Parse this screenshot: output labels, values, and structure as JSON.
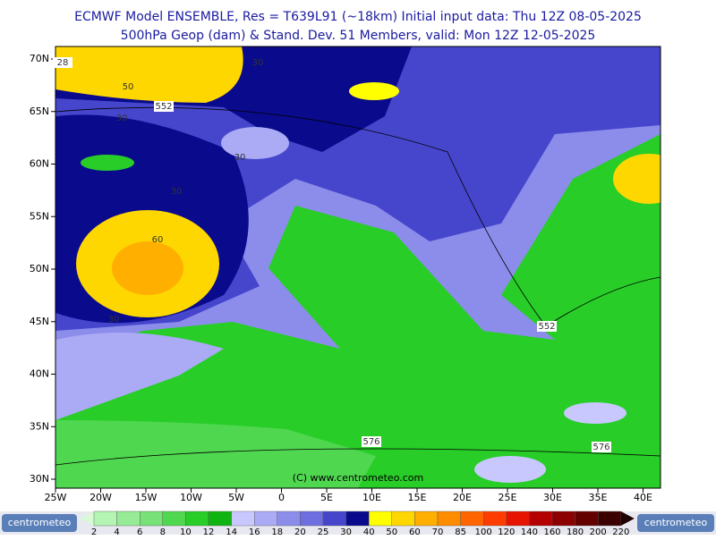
{
  "header": {
    "line1": "ECMWF Model ENSEMBLE, Res = T639L91 (~18km)  Initial input data: Thu 12Z 08-05-2025",
    "line2": "500hPa Geop (dam) & Stand. Dev.   51 Members, valid: Mon 12Z 12-05-2025"
  },
  "map": {
    "lat_labels": [
      "70N",
      "65N",
      "60N",
      "55N",
      "50N",
      "45N",
      "40N",
      "35N",
      "30N"
    ],
    "lon_labels": [
      "25W",
      "20W",
      "15W",
      "10W",
      "5W",
      "0",
      "5E",
      "10E",
      "15E",
      "20E",
      "25E",
      "30E",
      "35E",
      "40E"
    ],
    "contour_labels": [
      "28",
      "552",
      "552",
      "576",
      "576",
      "30",
      "30",
      "30",
      "30",
      "30",
      "50",
      "60"
    ],
    "watermark": "(C) www.centrometeo.com"
  },
  "legend": {
    "labels": [
      "2",
      "4",
      "6",
      "8",
      "10",
      "12",
      "14",
      "16",
      "18",
      "20",
      "25",
      "30",
      "40",
      "50",
      "60",
      "70",
      "85",
      "100",
      "120",
      "140",
      "160",
      "180",
      "200",
      "220"
    ],
    "colors": [
      "#b4f5b4",
      "#96eb96",
      "#78e178",
      "#50d750",
      "#28cd28",
      "#10b410",
      "#c8c8ff",
      "#aaaaf5",
      "#8c8ceb",
      "#6e6ee1",
      "#4646cd",
      "#0a0a8c",
      "#ffff00",
      "#ffd700",
      "#ffaf00",
      "#ff8c00",
      "#ff6400",
      "#ff3c00",
      "#e61400",
      "#b40000",
      "#8c0000",
      "#640000",
      "#3c0000"
    ]
  },
  "logo": {
    "left": "centrometeo",
    "right": "centrometeo"
  }
}
